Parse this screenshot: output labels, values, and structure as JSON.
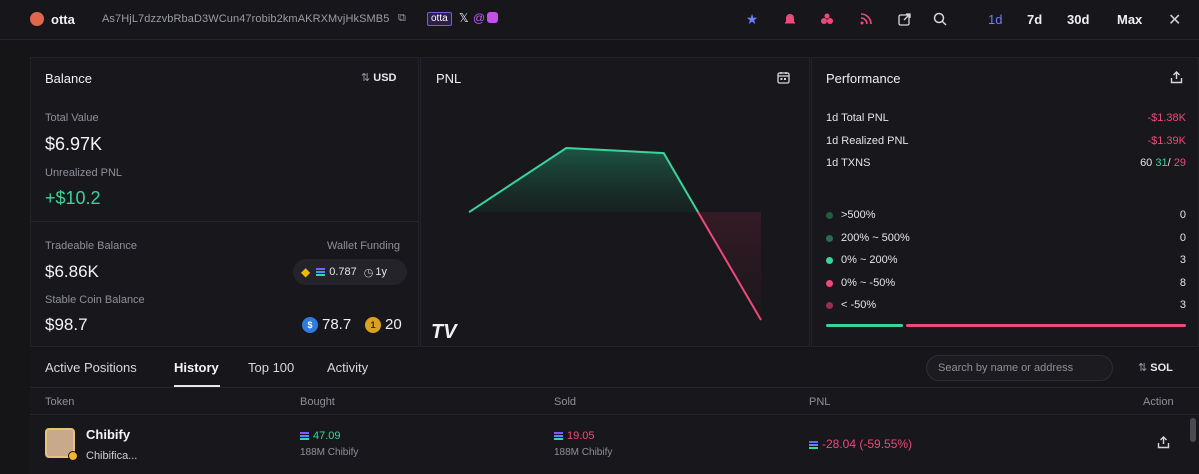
{
  "header": {
    "name": "otta",
    "address": "As7HjL7dzzvbRbaD3WCun47robib2kmAKRXMvjHkSMB5",
    "tag": "otta",
    "time_ranges": [
      "1d",
      "7d",
      "30d",
      "Max"
    ],
    "active_range": "1d",
    "icons": [
      "star-icon",
      "bell-icon",
      "bubbles-icon",
      "rss-icon",
      "external-link-icon",
      "search-icon",
      "close-icon"
    ]
  },
  "balance": {
    "title": "Balance",
    "currency_toggle": "USD",
    "total_value_label": "Total Value",
    "total_value": "$6.97K",
    "unrealized_label": "Unrealized PNL",
    "unrealized_value": "+$10.2",
    "tradeable_label": "Tradeable Balance",
    "tradeable_value": "$6.86K",
    "wallet_funding_label": "Wallet Funding",
    "wallet_funding_amount": "0.787",
    "wallet_funding_age": "1y",
    "stable_label": "Stable Coin Balance",
    "stable_value": "$98.7",
    "usdc_amount": "78.7",
    "usdt_amount": "20"
  },
  "pnl": {
    "title": "PNL",
    "watermark": "TV",
    "chart_data": {
      "type": "area",
      "title": "PNL",
      "x": [
        0,
        1,
        2,
        3
      ],
      "y": [
        0,
        1.0,
        0.92,
        -1.68
      ],
      "baseline": 0,
      "positive_color": "#3ad49a",
      "negative_color": "#ec4a7a",
      "xlabel": "",
      "ylabel": ""
    }
  },
  "performance": {
    "title": "Performance",
    "total_pnl_label": "1d Total PNL",
    "total_pnl_value": "-$1.38K",
    "realized_label": "1d Realized PNL",
    "realized_value": "-$1.39K",
    "txns_label": "1d TXNS",
    "txns_total": "60",
    "txns_buys": "31",
    "txns_separator": "/",
    "txns_sells": "29",
    "buckets": [
      {
        "label": ">500%",
        "count": "0",
        "color": "#1f5c43"
      },
      {
        "label": "200% ~ 500%",
        "count": "0",
        "color": "#2a6b50"
      },
      {
        "label": "0% ~ 200%",
        "count": "3",
        "color": "#3ad49a"
      },
      {
        "label": "0% ~ -50%",
        "count": "8",
        "color": "#ec4a7a"
      },
      {
        "label": "< -50%",
        "count": "3",
        "color": "#9b2d50"
      }
    ],
    "bar": {
      "positive": 3,
      "negative": 11
    }
  },
  "tabs": {
    "items": [
      "Active Positions",
      "History",
      "Top 100",
      "Activity"
    ],
    "active": "History",
    "search_placeholder": "Search by name or address",
    "unit_toggle": "SOL"
  },
  "table": {
    "headers": {
      "token": "Token",
      "bought": "Bought",
      "sold": "Sold",
      "pnl": "PNL",
      "action": "Action"
    },
    "rows": [
      {
        "name": "Chibify",
        "subtitle": "Chibifica...",
        "bought": "47.09",
        "bought_sub": "188M Chibify",
        "sold": "19.05",
        "sold_sub": "188M Chibify",
        "pnl": "-28.04 (-59.55%)"
      }
    ]
  }
}
